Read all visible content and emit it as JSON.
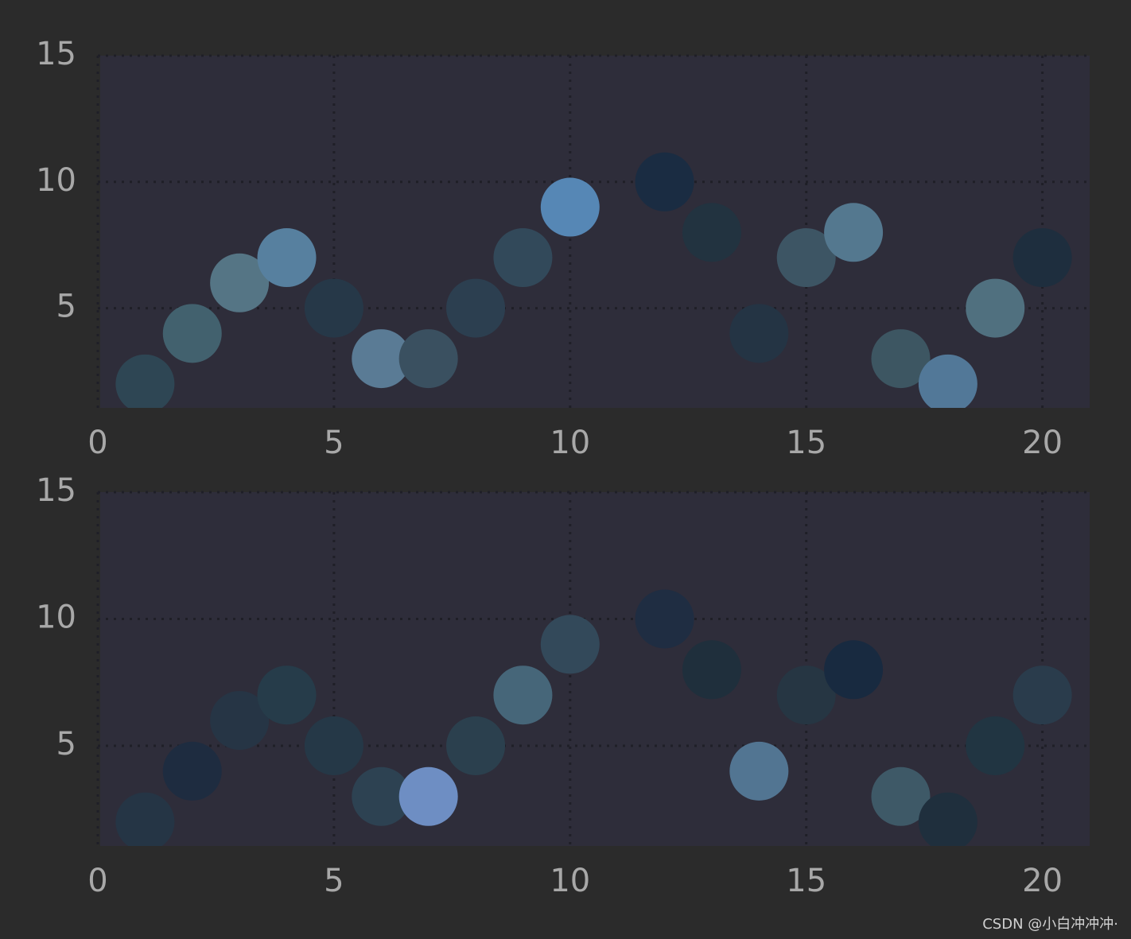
{
  "chart_data": [
    {
      "type": "scatter",
      "x": [
        1,
        2,
        3,
        4,
        5,
        6,
        7,
        8,
        9,
        10,
        12,
        13,
        14,
        15,
        16,
        17,
        18,
        19,
        20
      ],
      "series": [
        {
          "values": [
            2,
            4,
            6,
            7,
            5,
            3,
            3,
            5,
            7,
            9,
            10,
            8,
            4,
            7,
            8,
            3,
            2,
            5,
            7
          ],
          "colors": [
            "#2e4654",
            "#42616e",
            "#557585",
            "#57809f",
            "#263848",
            "#5a7b95",
            "#3a5060",
            "#2c3f50",
            "#32495a",
            "#5687b5",
            "#1a2c42",
            "#223340",
            "#243444",
            "#3d5564",
            "#54788f",
            "#3d5662",
            "#527898",
            "#50707f",
            "#1e2e3e"
          ]
        }
      ],
      "xlim": [
        0,
        21
      ],
      "ylim": [
        1.05,
        15
      ],
      "xticks": [
        0,
        5,
        10,
        15,
        20
      ],
      "yticks": [
        5,
        10,
        15
      ],
      "grid": true
    },
    {
      "type": "scatter",
      "x": [
        1,
        2,
        3,
        4,
        5,
        6,
        7,
        8,
        9,
        10,
        12,
        13,
        14,
        15,
        16,
        17,
        18,
        19,
        20
      ],
      "series": [
        {
          "values": [
            2,
            4,
            6,
            7,
            5,
            3,
            3,
            5,
            7,
            9,
            10,
            8,
            4,
            7,
            8,
            3,
            2,
            5,
            7
          ],
          "colors": [
            "#253545",
            "#1e2c40",
            "#263545",
            "#263c4a",
            "#253847",
            "#2d4252",
            "#6e8ec3",
            "#2b404e",
            "#466679",
            "#33495a",
            "#1f2d42",
            "#1f2f3c",
            "#527592",
            "#263643",
            "#182a40",
            "#3e5967",
            "#1f2f3d",
            "#213542",
            "#2a3c4c"
          ]
        }
      ],
      "xlim": [
        0,
        21
      ],
      "ylim": [
        1.05,
        15
      ],
      "xticks": [
        0,
        5,
        10,
        15,
        20
      ],
      "yticks": [
        5,
        10,
        15
      ],
      "grid": true
    }
  ],
  "watermark": "CSDN @小白冲冲冲·"
}
